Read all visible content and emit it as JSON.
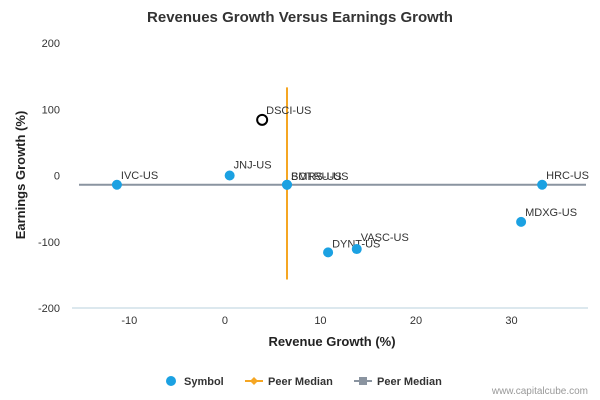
{
  "chart_data": {
    "type": "scatter",
    "title": "Revenues Growth Versus Earnings Growth",
    "xlabel": "Revenue Growth (%)",
    "ylabel": "Earnings Growth (%)",
    "xlim": [
      -16,
      38
    ],
    "ylim": [
      -200,
      200
    ],
    "x_ticks": [
      -10,
      0,
      10,
      20,
      30
    ],
    "y_ticks": [
      200,
      100,
      0,
      -100,
      -200
    ],
    "grid": false,
    "legend_position": "bottom",
    "series": [
      {
        "name": "Symbol",
        "color": "#1ba1e2",
        "points": [
          {
            "label": "IVC-US",
            "x": -11.3,
            "y": -14
          },
          {
            "label": "JNJ-US",
            "x": 0.5,
            "y": 0
          },
          {
            "label": "BOTRU-US",
            "x": 6.5,
            "y": -14
          },
          {
            "label": "SMRS-US",
            "x": 6.5,
            "y": -14
          },
          {
            "label": "HRC-US",
            "x": 33.2,
            "y": -14
          },
          {
            "label": "MDXG-US",
            "x": 31,
            "y": -70
          },
          {
            "label": "DYNT-US",
            "x": 10.8,
            "y": -116
          },
          {
            "label": "VASC-US",
            "x": 13.8,
            "y": -111
          }
        ]
      },
      {
        "name": "",
        "color": "#000000",
        "hollow": true,
        "points": [
          {
            "label": "DSCI-US",
            "x": 3.9,
            "y": 84
          }
        ]
      }
    ],
    "median_lines": [
      {
        "name": "Peer Median",
        "orientation": "vertical",
        "value": 6.5,
        "color": "#f5a623",
        "span": [
          -157,
          133
        ]
      },
      {
        "name": "Peer Median",
        "orientation": "horizontal",
        "value": -14,
        "color": "#8a94a0"
      }
    ]
  },
  "credit": "www.capitalcube.com"
}
